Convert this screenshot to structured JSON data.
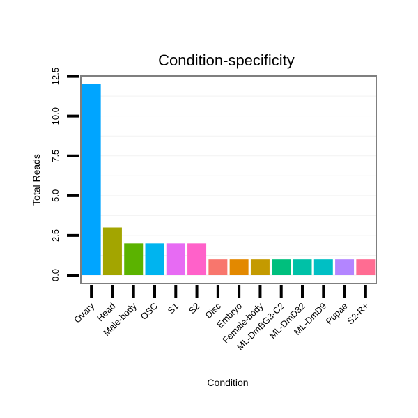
{
  "chart_data": {
    "type": "bar",
    "title": "Condition-specificity",
    "xlabel": "Condition",
    "ylabel": "Total Reads",
    "ylim": [
      0,
      13
    ],
    "yticks": [
      0.0,
      2.5,
      5.0,
      7.5,
      10.0,
      12.5
    ],
    "ytick_labels": [
      "0.0",
      "2.5",
      "5.0",
      "7.5",
      "10.0",
      "12.5"
    ],
    "categories": [
      "Ovary",
      "Head",
      "Male-body",
      "OSC",
      "S1",
      "S2",
      "Disc",
      "Embryo",
      "Female-body",
      "ML-DmBG3-C2",
      "ML-DmD32",
      "ML-DmD9",
      "Pupae",
      "S2-R+"
    ],
    "values": [
      12,
      3,
      2,
      2,
      2,
      2,
      1,
      1,
      1,
      1,
      1,
      1,
      1,
      1
    ],
    "colors": [
      "#00A5FF",
      "#A3A500",
      "#5BB300",
      "#00B4EF",
      "#E76BF3",
      "#FF61C9",
      "#F8766D",
      "#E38900",
      "#C49A00",
      "#00BF7D",
      "#00C1A7",
      "#00BFC4",
      "#B385FF",
      "#FF6C92"
    ],
    "grid": true,
    "legend": "none"
  }
}
